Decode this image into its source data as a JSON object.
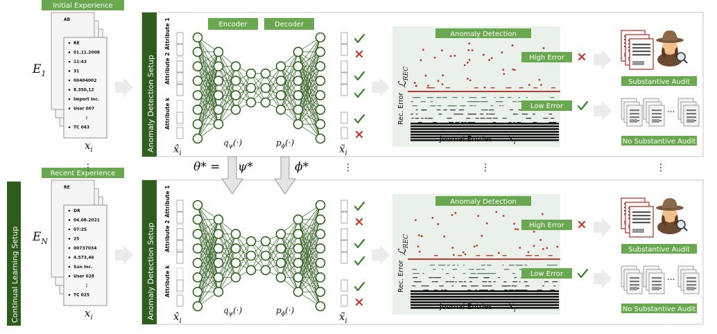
{
  "rows": [
    {
      "experience_label": "Initial Experience",
      "dataset_label": "E",
      "dataset_sub": "1",
      "doc_header": "AB",
      "doc_lines": [
        "RE",
        "01.11.2008",
        "11:43",
        "31",
        "00404002",
        "8.350,12",
        "Import Inc.",
        "User 007",
        "⋮",
        "TC 043"
      ],
      "highlight_index": 4,
      "setup_label": "Anomaly Detection Setup",
      "attributes": [
        "Attribute 1",
        "Attribute 2",
        "Attribute k"
      ],
      "encoder_label": "Encoder",
      "decoder_label": "Decoder",
      "x_hat": "x̂",
      "x_tilde": "x̃",
      "x_sub": "i",
      "q_label": "q",
      "q_sub": "ψ",
      "p_label": "p",
      "p_sub": "ϕ",
      "arg": "(·)",
      "checks": [
        "check",
        "cross",
        "check",
        "check",
        "check",
        "cross"
      ],
      "ad_title": "Anomaly Detection",
      "rec_error_label": "Rec. Error",
      "loss_label": "ℒ",
      "loss_sub": "REC",
      "journal_label": "Journal Entries",
      "journal_var": "x",
      "journal_sub": "i",
      "high_error_label": "High Error",
      "low_error_label": "Low Error",
      "substantive_label": "Substantive Audit",
      "no_substantive_label": "No Substantive Audit"
    },
    {
      "experience_label": "Recent Experience",
      "dataset_label": "E",
      "dataset_sub": "N",
      "doc_header": "RE",
      "doc_lines": [
        "DR",
        "04.08.2021",
        "07:25",
        "25",
        "00737034",
        "4.573,46",
        "Sun Inc.",
        "User 028",
        "⋮",
        "TC 025"
      ],
      "highlight_index": 4,
      "setup_label": "Anomaly Detection Setup",
      "attributes": [
        "Attribute 1",
        "Attribute 2",
        "Attribute k"
      ],
      "encoder_label": "",
      "decoder_label": "",
      "x_hat": "x̂",
      "x_tilde": "x̃",
      "x_sub": "i",
      "q_label": "q",
      "q_sub": "ψ",
      "p_label": "p",
      "p_sub": "ϕ",
      "arg": "(·)",
      "checks": [
        "check",
        "cross",
        "check",
        "check",
        "check",
        "cross"
      ],
      "ad_title": "Anomaly Detection",
      "rec_error_label": "Rec. Error",
      "loss_label": "ℒ",
      "loss_sub": "REC",
      "journal_label": "Journal Entries",
      "journal_var": "x",
      "journal_sub": "i",
      "high_error_label": "High Error",
      "low_error_label": "Low Error",
      "substantive_label": "Substantive Audit",
      "no_substantive_label": "No Substantive Audit"
    }
  ],
  "continual_label": "Continual Learning Setup",
  "transfer": {
    "theta": "θ* =",
    "psi": "ψ*",
    "phi": "ϕ*"
  },
  "ellipsis": "⋮",
  "colors": {
    "green_light": "#6aa84f",
    "green_dark": "#2e5d1e",
    "threshold_red": "#c0392b",
    "scatter_red": "#c0392b",
    "check_green": "#3a7d2a"
  }
}
